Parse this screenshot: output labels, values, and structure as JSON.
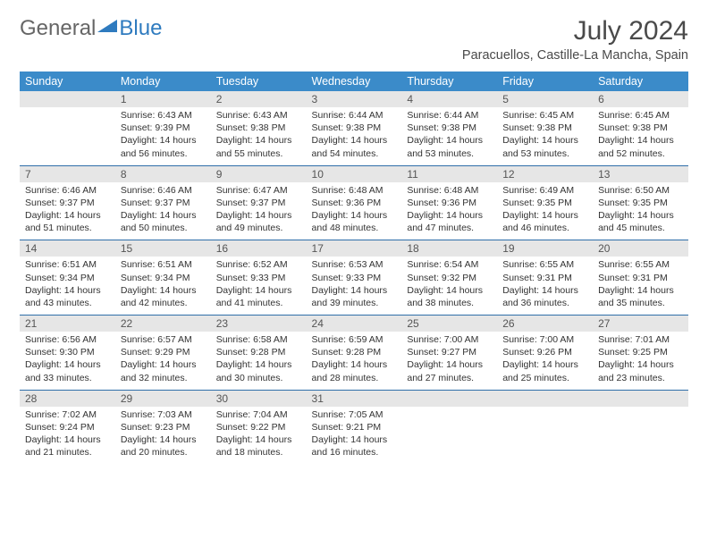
{
  "logo": {
    "word1": "General",
    "word2": "Blue"
  },
  "title": "July 2024",
  "location": "Paracuellos, Castille-La Mancha, Spain",
  "colors": {
    "header_bg": "#3b8bc9",
    "header_text": "#ffffff",
    "daynum_bg": "#e6e6e6",
    "row_border": "#2f6fa9",
    "logo_blue": "#2f7bbf"
  },
  "weekdays": [
    "Sunday",
    "Monday",
    "Tuesday",
    "Wednesday",
    "Thursday",
    "Friday",
    "Saturday"
  ],
  "weeks": [
    [
      null,
      {
        "n": "1",
        "sr": "6:43 AM",
        "ss": "9:39 PM",
        "dl": "14 hours and 56 minutes."
      },
      {
        "n": "2",
        "sr": "6:43 AM",
        "ss": "9:38 PM",
        "dl": "14 hours and 55 minutes."
      },
      {
        "n": "3",
        "sr": "6:44 AM",
        "ss": "9:38 PM",
        "dl": "14 hours and 54 minutes."
      },
      {
        "n": "4",
        "sr": "6:44 AM",
        "ss": "9:38 PM",
        "dl": "14 hours and 53 minutes."
      },
      {
        "n": "5",
        "sr": "6:45 AM",
        "ss": "9:38 PM",
        "dl": "14 hours and 53 minutes."
      },
      {
        "n": "6",
        "sr": "6:45 AM",
        "ss": "9:38 PM",
        "dl": "14 hours and 52 minutes."
      }
    ],
    [
      {
        "n": "7",
        "sr": "6:46 AM",
        "ss": "9:37 PM",
        "dl": "14 hours and 51 minutes."
      },
      {
        "n": "8",
        "sr": "6:46 AM",
        "ss": "9:37 PM",
        "dl": "14 hours and 50 minutes."
      },
      {
        "n": "9",
        "sr": "6:47 AM",
        "ss": "9:37 PM",
        "dl": "14 hours and 49 minutes."
      },
      {
        "n": "10",
        "sr": "6:48 AM",
        "ss": "9:36 PM",
        "dl": "14 hours and 48 minutes."
      },
      {
        "n": "11",
        "sr": "6:48 AM",
        "ss": "9:36 PM",
        "dl": "14 hours and 47 minutes."
      },
      {
        "n": "12",
        "sr": "6:49 AM",
        "ss": "9:35 PM",
        "dl": "14 hours and 46 minutes."
      },
      {
        "n": "13",
        "sr": "6:50 AM",
        "ss": "9:35 PM",
        "dl": "14 hours and 45 minutes."
      }
    ],
    [
      {
        "n": "14",
        "sr": "6:51 AM",
        "ss": "9:34 PM",
        "dl": "14 hours and 43 minutes."
      },
      {
        "n": "15",
        "sr": "6:51 AM",
        "ss": "9:34 PM",
        "dl": "14 hours and 42 minutes."
      },
      {
        "n": "16",
        "sr": "6:52 AM",
        "ss": "9:33 PM",
        "dl": "14 hours and 41 minutes."
      },
      {
        "n": "17",
        "sr": "6:53 AM",
        "ss": "9:33 PM",
        "dl": "14 hours and 39 minutes."
      },
      {
        "n": "18",
        "sr": "6:54 AM",
        "ss": "9:32 PM",
        "dl": "14 hours and 38 minutes."
      },
      {
        "n": "19",
        "sr": "6:55 AM",
        "ss": "9:31 PM",
        "dl": "14 hours and 36 minutes."
      },
      {
        "n": "20",
        "sr": "6:55 AM",
        "ss": "9:31 PM",
        "dl": "14 hours and 35 minutes."
      }
    ],
    [
      {
        "n": "21",
        "sr": "6:56 AM",
        "ss": "9:30 PM",
        "dl": "14 hours and 33 minutes."
      },
      {
        "n": "22",
        "sr": "6:57 AM",
        "ss": "9:29 PM",
        "dl": "14 hours and 32 minutes."
      },
      {
        "n": "23",
        "sr": "6:58 AM",
        "ss": "9:28 PM",
        "dl": "14 hours and 30 minutes."
      },
      {
        "n": "24",
        "sr": "6:59 AM",
        "ss": "9:28 PM",
        "dl": "14 hours and 28 minutes."
      },
      {
        "n": "25",
        "sr": "7:00 AM",
        "ss": "9:27 PM",
        "dl": "14 hours and 27 minutes."
      },
      {
        "n": "26",
        "sr": "7:00 AM",
        "ss": "9:26 PM",
        "dl": "14 hours and 25 minutes."
      },
      {
        "n": "27",
        "sr": "7:01 AM",
        "ss": "9:25 PM",
        "dl": "14 hours and 23 minutes."
      }
    ],
    [
      {
        "n": "28",
        "sr": "7:02 AM",
        "ss": "9:24 PM",
        "dl": "14 hours and 21 minutes."
      },
      {
        "n": "29",
        "sr": "7:03 AM",
        "ss": "9:23 PM",
        "dl": "14 hours and 20 minutes."
      },
      {
        "n": "30",
        "sr": "7:04 AM",
        "ss": "9:22 PM",
        "dl": "14 hours and 18 minutes."
      },
      {
        "n": "31",
        "sr": "7:05 AM",
        "ss": "9:21 PM",
        "dl": "14 hours and 16 minutes."
      },
      null,
      null,
      null
    ]
  ],
  "labels": {
    "sunrise": "Sunrise:",
    "sunset": "Sunset:",
    "daylight": "Daylight:"
  }
}
